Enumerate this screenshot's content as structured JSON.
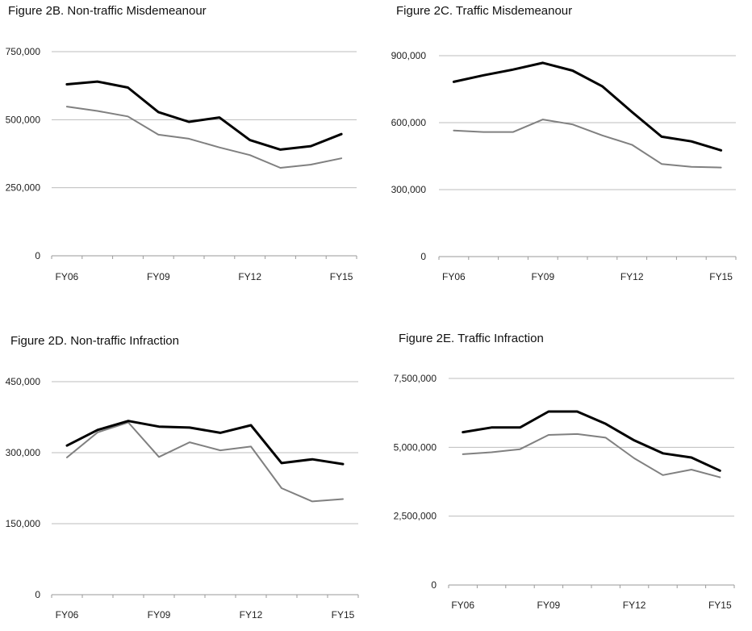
{
  "chart_data": [
    {
      "type": "line",
      "title": "Figure 2B. Non-traffic Misdemeanour",
      "x": [
        "FY06",
        "FY07",
        "FY08",
        "FY09",
        "FY10",
        "FY11",
        "FY12",
        "FY13",
        "FY14",
        "FY15"
      ],
      "x_tick_labels": [
        "FY06",
        "FY09",
        "FY12",
        "FY15"
      ],
      "y_tick_labels": [
        "750,000",
        "500,000",
        "250,000",
        "0"
      ],
      "y_ticks": [
        750000,
        500000,
        250000,
        0
      ],
      "ylim": [
        0,
        750000
      ],
      "grid": true,
      "series": [
        {
          "values": [
            630000,
            640000,
            618000,
            528000,
            492000,
            508000,
            425000,
            390000,
            403000,
            447000
          ],
          "color": "#000000"
        },
        {
          "values": [
            548000,
            532000,
            512000,
            445000,
            430000,
            398000,
            370000,
            323000,
            335000,
            358000
          ],
          "color": "#808080"
        }
      ]
    },
    {
      "type": "line",
      "title": "Figure 2C. Traffic Misdemeanour",
      "x": [
        "FY06",
        "FY07",
        "FY08",
        "FY09",
        "FY10",
        "FY11",
        "FY12",
        "FY13",
        "FY14",
        "FY15"
      ],
      "x_tick_labels": [
        "FY06",
        "FY09",
        "FY12",
        "FY15"
      ],
      "y_tick_labels": [
        "900,000",
        "600,000",
        "300,000",
        "0"
      ],
      "y_ticks": [
        900000,
        600000,
        300000,
        0
      ],
      "ylim": [
        0,
        900000
      ],
      "grid": true,
      "series": [
        {
          "values": [
            783000,
            812000,
            838000,
            868000,
            833000,
            763000,
            648000,
            537000,
            516000,
            476000
          ],
          "color": "#000000"
        },
        {
          "values": [
            565000,
            558000,
            558000,
            614000,
            592000,
            543000,
            501000,
            415000,
            402000,
            399000
          ],
          "color": "#808080"
        }
      ]
    },
    {
      "type": "line",
      "title": "Figure 2D. Non-traffic Infraction",
      "x": [
        "FY06",
        "FY07",
        "FY08",
        "FY09",
        "FY10",
        "FY11",
        "FY12",
        "FY13",
        "FY14",
        "FY15"
      ],
      "x_tick_labels": [
        "FY06",
        "FY09",
        "FY12",
        "FY15"
      ],
      "y_tick_labels": [
        "450,000",
        "300,000",
        "150,000",
        "0"
      ],
      "y_ticks": [
        450000,
        300000,
        150000,
        0
      ],
      "ylim": [
        0,
        450000
      ],
      "grid": true,
      "series": [
        {
          "values": [
            315000,
            348000,
            367000,
            355000,
            353000,
            342000,
            358000,
            278000,
            286000,
            276000
          ],
          "color": "#000000"
        },
        {
          "values": [
            290000,
            343000,
            364000,
            291000,
            322000,
            305000,
            313000,
            225000,
            197000,
            202000
          ],
          "color": "#808080"
        }
      ]
    },
    {
      "type": "line",
      "title": "Figure 2E. Traffic Infraction",
      "x": [
        "FY06",
        "FY07",
        "FY08",
        "FY09",
        "FY10",
        "FY11",
        "FY12",
        "FY13",
        "FY14",
        "FY15"
      ],
      "x_tick_labels": [
        "FY06",
        "FY09",
        "FY12",
        "FY15"
      ],
      "y_tick_labels": [
        "7,500,000",
        "5,000,000",
        "2,500,000",
        "0"
      ],
      "y_ticks": [
        7500000,
        5000000,
        2500000,
        0
      ],
      "ylim": [
        0,
        7500000
      ],
      "grid": true,
      "series": [
        {
          "values": [
            5550000,
            5720000,
            5720000,
            6300000,
            6300000,
            5850000,
            5250000,
            4780000,
            4630000,
            4150000
          ],
          "color": "#000000"
        },
        {
          "values": [
            4750000,
            4820000,
            4930000,
            5450000,
            5480000,
            5350000,
            4600000,
            3990000,
            4190000,
            3910000
          ],
          "color": "#808080"
        }
      ]
    }
  ]
}
